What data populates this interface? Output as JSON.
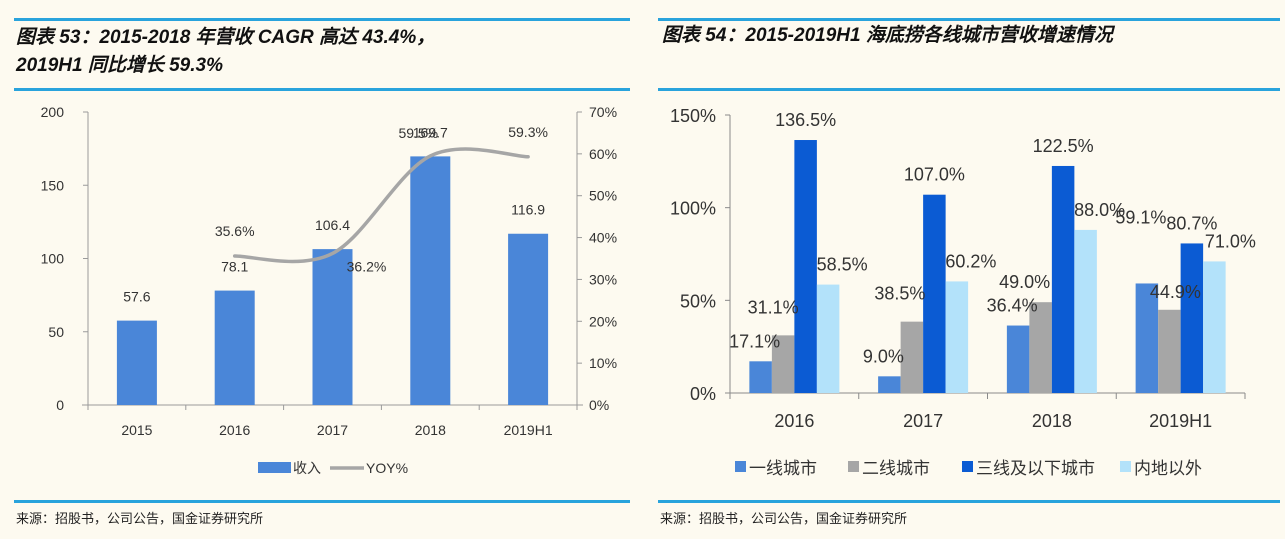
{
  "left": {
    "title_line1": "图表 53：2015-2018 年营收 CAGR 高达 43.4%，",
    "title_line2": "2019H1 同比增长 59.3%",
    "source": "来源：招股书，公司公告，国金证券研究所"
  },
  "right": {
    "title": "图表 54：2015-2019H1 海底捞各线城市营收增速情况",
    "source": "来源：招股书，公司公告，国金证券研究所"
  },
  "colors": {
    "rule": "#29a3dc",
    "revenue_bar": "#4a86d8",
    "yoy_line": "#a6a6a6",
    "tier1": "#4a86d8",
    "tier2": "#a6a6a6",
    "tier3": "#0b5bd3",
    "overseas": "#b3e2fa"
  },
  "chart_data": [
    {
      "type": "bar",
      "title": "图表 53：2015-2018 年营收 CAGR 高达 43.4%，2019H1 同比增长 59.3%",
      "categories": [
        "2015",
        "2016",
        "2017",
        "2018",
        "2019H1"
      ],
      "series": [
        {
          "name": "收入",
          "type": "bar",
          "axis": "left",
          "values": [
            57.6,
            78.1,
            106.4,
            169.7,
            116.9
          ],
          "labels": [
            "57.6",
            "78.1",
            "106.4",
            "169.7",
            "116.9"
          ]
        },
        {
          "name": "YOY%",
          "type": "line",
          "axis": "right",
          "values": [
            null,
            35.6,
            36.2,
            59.5,
            59.3
          ],
          "labels": [
            "",
            "35.6%",
            "36.2%",
            "59.5%",
            "59.3%"
          ]
        }
      ],
      "y_left": {
        "min": 0,
        "max": 200,
        "ticks": [
          "0",
          "50",
          "100",
          "150",
          "200"
        ]
      },
      "y_right": {
        "min": 0,
        "max": 70,
        "ticks": [
          "0%",
          "10%",
          "20%",
          "30%",
          "40%",
          "50%",
          "60%",
          "70%"
        ]
      },
      "legend": [
        "收入",
        "YOY%"
      ],
      "legend_position": "bottom",
      "grid": false
    },
    {
      "type": "bar",
      "title": "图表 54：2015-2019H1 海底捞各线城市营收增速情况",
      "categories": [
        "2016",
        "2017",
        "2018",
        "2019H1"
      ],
      "series": [
        {
          "name": "一线城市",
          "values": [
            17.1,
            9.0,
            36.4,
            59.1
          ],
          "labels": [
            "17.1%",
            "9.0%",
            "36.4%",
            "59.1%"
          ]
        },
        {
          "name": "二线城市",
          "values": [
            31.1,
            38.5,
            49.0,
            44.9
          ],
          "labels": [
            "31.1%",
            "38.5%",
            "49.0%",
            "44.9%"
          ]
        },
        {
          "name": "三线及以下城市",
          "values": [
            136.5,
            107.0,
            122.5,
            80.7
          ],
          "labels": [
            "136.5%",
            "107.0%",
            "122.5%",
            "80.7%"
          ]
        },
        {
          "name": "内地以外",
          "values": [
            58.5,
            60.2,
            88.0,
            71.0
          ],
          "labels": [
            "58.5%",
            "60.2%",
            "88.0%",
            "71.0%"
          ]
        }
      ],
      "y": {
        "min": 0,
        "max": 150,
        "ticks": [
          "0%",
          "50%",
          "100%",
          "150%"
        ]
      },
      "legend": [
        "一线城市",
        "二线城市",
        "三线及以下城市",
        "内地以外"
      ],
      "legend_position": "bottom",
      "grid": false
    }
  ]
}
